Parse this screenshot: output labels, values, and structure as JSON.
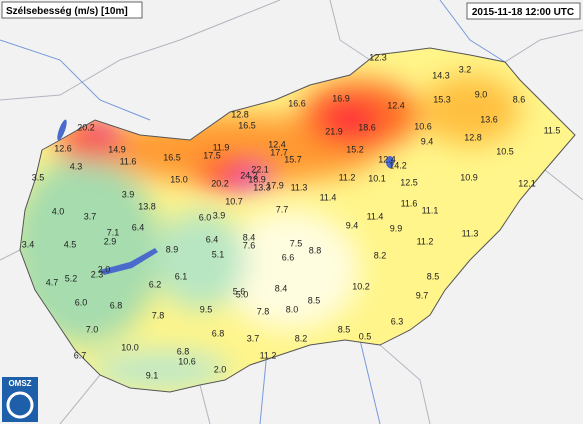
{
  "header": {
    "title": "Szélsebesség (m/s) [10m]",
    "timestamp": "2015-11-18 12:00 UTC"
  },
  "logo": "OMSZ",
  "stations": [
    "12.3",
    "14.3",
    "3.2",
    "9.0",
    "15.3",
    "8.6",
    "11.5",
    "13.6",
    "10.6",
    "12.8",
    "9.4",
    "10.5",
    "12.4",
    "16.9",
    "21.9",
    "18.6",
    "15.2",
    "12.4",
    "14.2",
    "10.1",
    "12.5",
    "10.9",
    "12.1",
    "16.6",
    "12.8",
    "16.5",
    "20.2",
    "12.6",
    "14.9",
    "11.6",
    "16.5",
    "11.9",
    "17.5",
    "12.4",
    "17.7",
    "15.7",
    "15.0",
    "20.2",
    "24.2",
    "22.1",
    "18.9",
    "13.3",
    "17.9",
    "11.3",
    "11.2",
    "4.3",
    "3.5",
    "4.0",
    "3.7",
    "3.9",
    "13.8",
    "10.7",
    "7.7",
    "11.4",
    "11.4",
    "11.6",
    "11.1",
    "9.4",
    "9.9",
    "11.3",
    "11.2",
    "6.0",
    "3.9",
    "6.4",
    "7.1",
    "6.4",
    "8.4",
    "7.6",
    "7.5",
    "8.8",
    "5.1",
    "8.9",
    "3.4",
    "4.5",
    "2.9",
    "2.0",
    "2.3",
    "5.2",
    "4.7",
    "6.6",
    "8.2",
    "8.5",
    "6.1",
    "6.2",
    "8.4",
    "10.2",
    "9.7",
    "5.6",
    "5.0",
    "8.5",
    "6.0",
    "6.8",
    "9.5",
    "7.8",
    "7.8",
    "8.0",
    "6.3",
    "7.0",
    "6.8",
    "8.5",
    "8.2",
    "3.7",
    "0.5",
    "10.0",
    "6.8",
    "6.7",
    "10.6",
    "11.2",
    "9.1",
    "2.0"
  ]
}
